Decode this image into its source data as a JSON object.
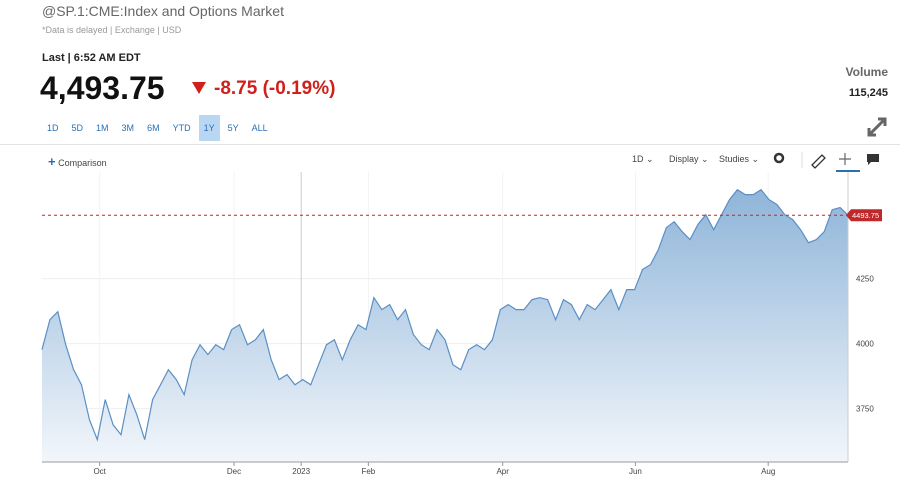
{
  "header": {
    "symbol": "@SP.1:CME:Index and Options Market",
    "note": "*Data is delayed | Exchange | USD"
  },
  "quote": {
    "last": "Last | 6:52 AM EDT",
    "price": "4,493.75",
    "change": "-8.75 (-0.19%)"
  },
  "volume": {
    "label": "Volume",
    "value": "115,245"
  },
  "ranges": [
    "1D",
    "5D",
    "1M",
    "3M",
    "6M",
    "YTD",
    "1Y",
    "5Y",
    "ALL"
  ],
  "toolbar": {
    "comparison": "Comparison",
    "interval": "1D",
    "display": "Display",
    "studies": "Studies"
  },
  "chart_data": {
    "type": "area",
    "color": "#5b8fc4",
    "values": [
      3977,
      4092,
      4123,
      3996,
      3900,
      3842,
      3708,
      3631,
      3785,
      3688,
      3650,
      3804,
      3727,
      3631,
      3785,
      3842,
      3900,
      3862,
      3804,
      3938,
      3996,
      3958,
      3996,
      3977,
      4054,
      4073,
      3996,
      4015,
      4054,
      3938,
      3862,
      3881,
      3842,
      3862,
      3842,
      3919,
      3996,
      4015,
      3938,
      4015,
      4073,
      4054,
      4177,
      4131,
      4150,
      4092,
      4131,
      4035,
      3996,
      3977,
      4054,
      4015,
      3919,
      3900,
      3977,
      3996,
      3977,
      4015,
      4131,
      4150,
      4131,
      4131,
      4169,
      4177,
      4169,
      4092,
      4169,
      4150,
      4092,
      4150,
      4131,
      4169,
      4208,
      4131,
      4208,
      4208,
      4285,
      4304,
      4362,
      4446,
      4469,
      4431,
      4400,
      4458,
      4496,
      4438,
      4496,
      4554,
      4592,
      4573,
      4573,
      4592,
      4554,
      4535,
      4496,
      4477,
      4438,
      4388,
      4400,
      4431,
      4515,
      4523,
      4493.75
    ],
    "xlim": [
      0,
      102
    ],
    "xticks": [
      {
        "value": 7.3,
        "label": "Oct"
      },
      {
        "value": 24.3,
        "label": "Dec"
      },
      {
        "value": 32.8,
        "label": "2023"
      },
      {
        "value": 41.3,
        "label": "Feb"
      },
      {
        "value": 58.3,
        "label": "Apr"
      },
      {
        "value": 75.1,
        "label": "Jun"
      },
      {
        "value": 91.9,
        "label": "Aug"
      }
    ],
    "ylim": [
      3545,
      4660
    ],
    "yticks": [
      3750,
      4000,
      4250
    ],
    "grid": true,
    "reference_line": 4493.75
  }
}
